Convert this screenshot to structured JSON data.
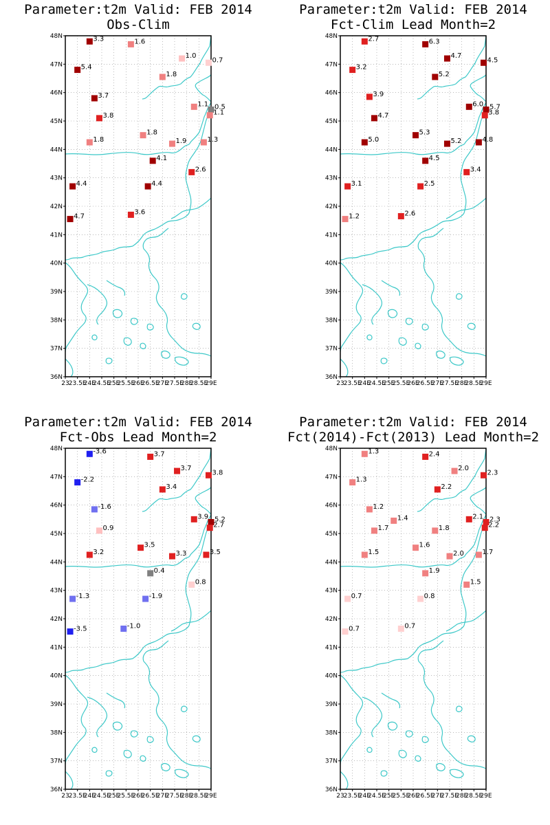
{
  "colors": {
    "coast": "#3cc8c8",
    "grid": "#8c8c8c",
    "frame": "#000000"
  },
  "chart_data": [
    {
      "type": "scatter",
      "title": "Parameter:t2m Valid: FEB 2014",
      "subtitle": "Obs-Clim",
      "xlim": [
        23,
        29
      ],
      "ylim": [
        36,
        48
      ],
      "xticks": [
        "23",
        "23.5E",
        "24E",
        "24.5E",
        "25E",
        "25.5E",
        "26E",
        "26.5E",
        "27E",
        "27.5E",
        "28E",
        "28.5E",
        "29E"
      ],
      "yticks": [
        "36N",
        "37N",
        "38N",
        "39N",
        "40N",
        "41N",
        "42N",
        "43N",
        "44N",
        "45N",
        "46N",
        "47N",
        "48N"
      ],
      "points": [
        {
          "lon": 24.0,
          "lat": 47.8,
          "value": 3.3,
          "color": "#a00000"
        },
        {
          "lon": 25.7,
          "lat": 47.7,
          "value": 1.6,
          "color": "#f08080"
        },
        {
          "lon": 27.8,
          "lat": 47.2,
          "value": 1.0,
          "color": "#ffc0c0"
        },
        {
          "lon": 28.9,
          "lat": 47.05,
          "value": 0.7,
          "color": "#ffd0d0"
        },
        {
          "lon": 23.5,
          "lat": 46.8,
          "value": 5.4,
          "color": "#a00000"
        },
        {
          "lon": 27.0,
          "lat": 46.55,
          "value": 1.8,
          "color": "#f08080"
        },
        {
          "lon": 24.2,
          "lat": 45.8,
          "value": 3.7,
          "color": "#a00000"
        },
        {
          "lon": 28.3,
          "lat": 45.5,
          "value": 1.1,
          "color": "#f08080"
        },
        {
          "lon": 29.0,
          "lat": 45.4,
          "value": 0.5,
          "color": "#808080"
        },
        {
          "lon": 28.95,
          "lat": 45.2,
          "value": 1.1,
          "color": "#f08080"
        },
        {
          "lon": 24.4,
          "lat": 45.1,
          "value": 3.8,
          "color": "#e02020"
        },
        {
          "lon": 26.2,
          "lat": 44.5,
          "value": 1.8,
          "color": "#f08080"
        },
        {
          "lon": 24.0,
          "lat": 44.25,
          "value": 1.8,
          "color": "#f08080"
        },
        {
          "lon": 27.4,
          "lat": 44.2,
          "value": 1.9,
          "color": "#f08080"
        },
        {
          "lon": 28.7,
          "lat": 44.25,
          "value": 1.3,
          "color": "#f08080"
        },
        {
          "lon": 26.6,
          "lat": 43.6,
          "value": 4.1,
          "color": "#a00000"
        },
        {
          "lon": 28.2,
          "lat": 43.2,
          "value": 2.6,
          "color": "#e02020"
        },
        {
          "lon": 23.3,
          "lat": 42.7,
          "value": 4.4,
          "color": "#a00000"
        },
        {
          "lon": 26.4,
          "lat": 42.7,
          "value": 4.4,
          "color": "#a00000"
        },
        {
          "lon": 25.7,
          "lat": 41.7,
          "value": 3.6,
          "color": "#e02020"
        },
        {
          "lon": 23.2,
          "lat": 41.55,
          "value": 4.7,
          "color": "#a00000"
        }
      ]
    },
    {
      "type": "scatter",
      "title": "Parameter:t2m Valid: FEB 2014",
      "subtitle": "Fct-Clim Lead Month=2",
      "xlim": [
        23,
        29
      ],
      "ylim": [
        36,
        48
      ],
      "xticks": [
        "23",
        "23.5E",
        "24E",
        "24.5E",
        "25E",
        "25.5E",
        "26E",
        "26.5E",
        "27E",
        "27.5E",
        "28E",
        "28.5E",
        "29E"
      ],
      "yticks": [
        "36N",
        "37N",
        "38N",
        "39N",
        "40N",
        "41N",
        "42N",
        "43N",
        "44N",
        "45N",
        "46N",
        "47N",
        "48N"
      ],
      "points": [
        {
          "lon": 24.0,
          "lat": 47.8,
          "value": 2.7,
          "color": "#e02020"
        },
        {
          "lon": 26.5,
          "lat": 47.7,
          "value": 6.3,
          "color": "#a00000"
        },
        {
          "lon": 27.4,
          "lat": 47.2,
          "value": 4.7,
          "color": "#a00000"
        },
        {
          "lon": 28.9,
          "lat": 47.05,
          "value": 4.5,
          "color": "#a00000"
        },
        {
          "lon": 23.5,
          "lat": 46.8,
          "value": 3.2,
          "color": "#e02020"
        },
        {
          "lon": 26.9,
          "lat": 46.55,
          "value": 5.2,
          "color": "#a00000"
        },
        {
          "lon": 24.2,
          "lat": 45.85,
          "value": 3.9,
          "color": "#e02020"
        },
        {
          "lon": 28.3,
          "lat": 45.5,
          "value": 6.0,
          "color": "#a00000"
        },
        {
          "lon": 29.0,
          "lat": 45.4,
          "value": 5.7,
          "color": "#a00000"
        },
        {
          "lon": 28.95,
          "lat": 45.2,
          "value": 3.8,
          "color": "#e02020"
        },
        {
          "lon": 24.4,
          "lat": 45.1,
          "value": 4.7,
          "color": "#a00000"
        },
        {
          "lon": 26.1,
          "lat": 44.5,
          "value": 5.3,
          "color": "#a00000"
        },
        {
          "lon": 24.0,
          "lat": 44.25,
          "value": 5.0,
          "color": "#a00000"
        },
        {
          "lon": 27.4,
          "lat": 44.2,
          "value": 5.2,
          "color": "#a00000"
        },
        {
          "lon": 28.7,
          "lat": 44.25,
          "value": 4.8,
          "color": "#a00000"
        },
        {
          "lon": 26.5,
          "lat": 43.6,
          "value": 4.5,
          "color": "#a00000"
        },
        {
          "lon": 28.2,
          "lat": 43.2,
          "value": 3.4,
          "color": "#e02020"
        },
        {
          "lon": 23.3,
          "lat": 42.7,
          "value": 3.1,
          "color": "#e02020"
        },
        {
          "lon": 26.3,
          "lat": 42.7,
          "value": 2.5,
          "color": "#e02020"
        },
        {
          "lon": 25.5,
          "lat": 41.65,
          "value": 2.6,
          "color": "#e02020"
        },
        {
          "lon": 23.2,
          "lat": 41.55,
          "value": 1.2,
          "color": "#f08080"
        }
      ]
    },
    {
      "type": "scatter",
      "title": "Parameter:t2m Valid: FEB 2014",
      "subtitle": "Fct-Obs Lead Month=2",
      "xlim": [
        23,
        29
      ],
      "ylim": [
        36,
        48
      ],
      "xticks": [
        "23",
        "23.5E",
        "24E",
        "24.5E",
        "25E",
        "25.5E",
        "26E",
        "26.5E",
        "27E",
        "27.5E",
        "28E",
        "28.5E",
        "29E"
      ],
      "yticks": [
        "36N",
        "37N",
        "38N",
        "39N",
        "40N",
        "41N",
        "42N",
        "43N",
        "44N",
        "45N",
        "46N",
        "47N",
        "48N"
      ],
      "points": [
        {
          "lon": 24.0,
          "lat": 47.8,
          "value": -3.6,
          "color": "#2020f0"
        },
        {
          "lon": 26.5,
          "lat": 47.7,
          "value": 3.7,
          "color": "#e02020"
        },
        {
          "lon": 27.6,
          "lat": 47.2,
          "value": 3.7,
          "color": "#e02020"
        },
        {
          "lon": 28.9,
          "lat": 47.05,
          "value": 3.8,
          "color": "#e02020"
        },
        {
          "lon": 23.5,
          "lat": 46.8,
          "value": -2.2,
          "color": "#2020f0"
        },
        {
          "lon": 27.0,
          "lat": 46.55,
          "value": 3.4,
          "color": "#e02020"
        },
        {
          "lon": 24.2,
          "lat": 45.85,
          "value": -1.6,
          "color": "#7070f0"
        },
        {
          "lon": 28.3,
          "lat": 45.5,
          "value": 3.9,
          "color": "#e02020"
        },
        {
          "lon": 29.0,
          "lat": 45.4,
          "value": 5.2,
          "color": "#a00000"
        },
        {
          "lon": 28.95,
          "lat": 45.2,
          "value": 2.7,
          "color": "#e02020"
        },
        {
          "lon": 24.4,
          "lat": 45.1,
          "value": 0.9,
          "color": "#ffc0c0"
        },
        {
          "lon": 26.1,
          "lat": 44.5,
          "value": 3.5,
          "color": "#e02020"
        },
        {
          "lon": 24.0,
          "lat": 44.25,
          "value": 3.2,
          "color": "#e02020"
        },
        {
          "lon": 27.4,
          "lat": 44.2,
          "value": 3.3,
          "color": "#e02020"
        },
        {
          "lon": 28.8,
          "lat": 44.25,
          "value": 3.5,
          "color": "#e02020"
        },
        {
          "lon": 26.5,
          "lat": 43.6,
          "value": 0.4,
          "color": "#808080"
        },
        {
          "lon": 28.2,
          "lat": 43.2,
          "value": 0.8,
          "color": "#ffd0d0"
        },
        {
          "lon": 23.3,
          "lat": 42.7,
          "value": -1.3,
          "color": "#7070f0"
        },
        {
          "lon": 26.3,
          "lat": 42.7,
          "value": -1.9,
          "color": "#7070f0"
        },
        {
          "lon": 25.4,
          "lat": 41.65,
          "value": -1.0,
          "color": "#7070f0"
        },
        {
          "lon": 23.2,
          "lat": 41.55,
          "value": -3.5,
          "color": "#2020f0"
        }
      ]
    },
    {
      "type": "scatter",
      "title": "Parameter:t2m Valid: FEB 2014",
      "subtitle": "Fct(2014)-Fct(2013) Lead Month=2",
      "xlim": [
        23,
        29
      ],
      "ylim": [
        36,
        48
      ],
      "xticks": [
        "23",
        "23.5E",
        "24E",
        "24.5E",
        "25E",
        "25.5E",
        "26E",
        "26.5E",
        "27E",
        "27.5E",
        "28E",
        "28.5E",
        "29E"
      ],
      "yticks": [
        "36N",
        "37N",
        "38N",
        "39N",
        "40N",
        "41N",
        "42N",
        "43N",
        "44N",
        "45N",
        "46N",
        "47N",
        "48N"
      ],
      "points": [
        {
          "lon": 24.0,
          "lat": 47.8,
          "value": 1.3,
          "color": "#f08080"
        },
        {
          "lon": 26.5,
          "lat": 47.7,
          "value": 2.4,
          "color": "#e02020"
        },
        {
          "lon": 27.7,
          "lat": 47.2,
          "value": 2.0,
          "color": "#f08080"
        },
        {
          "lon": 28.9,
          "lat": 47.05,
          "value": 2.3,
          "color": "#e02020"
        },
        {
          "lon": 23.5,
          "lat": 46.8,
          "value": 1.3,
          "color": "#f08080"
        },
        {
          "lon": 27.0,
          "lat": 46.55,
          "value": 2.2,
          "color": "#e02020"
        },
        {
          "lon": 24.2,
          "lat": 45.85,
          "value": 1.2,
          "color": "#f08080"
        },
        {
          "lon": 25.2,
          "lat": 45.45,
          "value": 1.4,
          "color": "#f08080"
        },
        {
          "lon": 28.3,
          "lat": 45.5,
          "value": 2.1,
          "color": "#e02020"
        },
        {
          "lon": 29.0,
          "lat": 45.4,
          "value": 2.3,
          "color": "#e02020"
        },
        {
          "lon": 28.95,
          "lat": 45.2,
          "value": 2.2,
          "color": "#e02020"
        },
        {
          "lon": 24.4,
          "lat": 45.1,
          "value": 1.7,
          "color": "#f08080"
        },
        {
          "lon": 26.9,
          "lat": 45.1,
          "value": 1.8,
          "color": "#f08080"
        },
        {
          "lon": 26.1,
          "lat": 44.5,
          "value": 1.6,
          "color": "#f08080"
        },
        {
          "lon": 24.0,
          "lat": 44.25,
          "value": 1.5,
          "color": "#f08080"
        },
        {
          "lon": 27.5,
          "lat": 44.2,
          "value": 2.0,
          "color": "#f08080"
        },
        {
          "lon": 28.7,
          "lat": 44.25,
          "value": 1.7,
          "color": "#f08080"
        },
        {
          "lon": 26.5,
          "lat": 43.6,
          "value": 1.9,
          "color": "#f08080"
        },
        {
          "lon": 28.2,
          "lat": 43.2,
          "value": 1.5,
          "color": "#f08080"
        },
        {
          "lon": 23.3,
          "lat": 42.7,
          "value": 0.7,
          "color": "#ffd0d0"
        },
        {
          "lon": 26.3,
          "lat": 42.7,
          "value": 0.8,
          "color": "#ffd0d0"
        },
        {
          "lon": 25.5,
          "lat": 41.65,
          "value": 0.7,
          "color": "#ffd0d0"
        },
        {
          "lon": 23.2,
          "lat": 41.55,
          "value": 0.7,
          "color": "#ffd0d0"
        }
      ]
    }
  ]
}
